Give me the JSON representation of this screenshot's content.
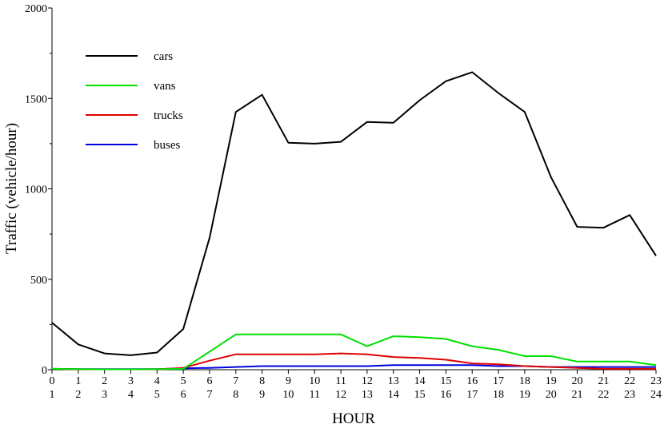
{
  "chart_data": {
    "type": "line",
    "xlabel": "HOUR",
    "ylabel": "Traffic (vehicle/hour)",
    "x": [
      0,
      1,
      2,
      3,
      4,
      5,
      6,
      7,
      8,
      9,
      10,
      11,
      12,
      13,
      14,
      15,
      16,
      17,
      18,
      19,
      20,
      21,
      22,
      23
    ],
    "x_tick_labels_top": [
      "0",
      "1",
      "2",
      "3",
      "4",
      "5",
      "6",
      "7",
      "8",
      "9",
      "10",
      "11",
      "12",
      "13",
      "14",
      "15",
      "16",
      "17",
      "18",
      "19",
      "20",
      "21",
      "22",
      "23"
    ],
    "x_tick_labels_bottom": [
      "1",
      "2",
      "3",
      "4",
      "5",
      "6",
      "7",
      "8",
      "9",
      "10",
      "11",
      "12",
      "13",
      "14",
      "15",
      "16",
      "17",
      "18",
      "19",
      "20",
      "21",
      "22",
      "23",
      "24"
    ],
    "xlim": [
      0,
      23
    ],
    "ylim": [
      0,
      2000
    ],
    "y_ticks": [
      0,
      500,
      1000,
      1500,
      2000
    ],
    "y_tick_labels": [
      "0",
      "500",
      "1000",
      "1500",
      "2000"
    ],
    "grid": false,
    "legend_position": "top-left",
    "series": [
      {
        "name": "cars",
        "color": "#000000",
        "values": [
          260,
          140,
          90,
          80,
          95,
          225,
          730,
          1425,
          1520,
          1255,
          1250,
          1260,
          1370,
          1365,
          1490,
          1595,
          1645,
          1530,
          1425,
          1065,
          790,
          785,
          855,
          630
        ]
      },
      {
        "name": "vans",
        "color": "#00e000",
        "values": [
          5,
          3,
          2,
          2,
          3,
          5,
          100,
          195,
          195,
          195,
          195,
          195,
          130,
          185,
          180,
          170,
          130,
          110,
          75,
          75,
          45,
          45,
          45,
          25
        ]
      },
      {
        "name": "trucks",
        "color": "#e00000",
        "values": [
          5,
          2,
          2,
          2,
          2,
          10,
          50,
          85,
          85,
          85,
          85,
          90,
          85,
          70,
          65,
          55,
          35,
          30,
          20,
          15,
          10,
          5,
          5,
          5
        ]
      },
      {
        "name": "buses",
        "color": "#0000e0",
        "values": [
          5,
          3,
          3,
          3,
          3,
          8,
          10,
          15,
          20,
          20,
          20,
          20,
          20,
          25,
          25,
          25,
          25,
          20,
          20,
          15,
          15,
          15,
          15,
          15
        ]
      }
    ]
  }
}
